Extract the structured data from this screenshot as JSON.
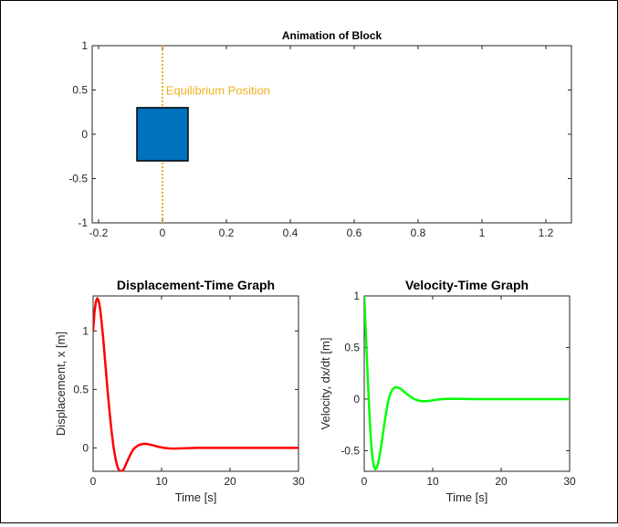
{
  "chart_data": [
    {
      "type": "animation-frame",
      "title": "Animation of Block",
      "xlim": [
        -0.22,
        1.28
      ],
      "ylim": [
        -1,
        1
      ],
      "x_ticks": [
        "-0.2",
        "0",
        "0.2",
        "0.4",
        "0.6",
        "0.8",
        "1",
        "1.2"
      ],
      "x_tick_values": [
        -0.2,
        0,
        0.2,
        0.4,
        0.6,
        0.8,
        1,
        1.2
      ],
      "y_ticks": [
        "1",
        "0.5",
        "0",
        "-0.5",
        "-1"
      ],
      "y_tick_values": [
        1,
        0.5,
        0,
        -0.5,
        -1
      ],
      "block": {
        "x_min": -0.08,
        "x_max": 0.08,
        "y_min": -0.3,
        "y_max": 0.3,
        "color": "#0072BD"
      },
      "equilibrium_line": {
        "x": 0,
        "color": "#EDB120"
      },
      "annotation": {
        "text": "Equilibrium Position",
        "x": 0.005,
        "y": 0.5,
        "color": "#EDB120"
      }
    },
    {
      "type": "line",
      "title": "Displacement-Time Graph",
      "xlabel": "Time [s]",
      "ylabel": "Displacement, x [m]",
      "xlim": [
        0,
        30
      ],
      "ylim": [
        -0.2,
        1.3
      ],
      "x_ticks": [
        "0",
        "10",
        "20",
        "30"
      ],
      "x_tick_values": [
        0,
        10,
        20,
        30
      ],
      "y_ticks": [
        "1",
        "0.5",
        "0"
      ],
      "y_tick_values": [
        1,
        0.5,
        0
      ],
      "grid": false,
      "series": [
        {
          "color": "#FF0000",
          "x": [
            0,
            0.2,
            0.4,
            0.6,
            0.8,
            1.0,
            1.2,
            1.5,
            1.8,
            2.1,
            2.4,
            2.7,
            3.0,
            3.3,
            3.6,
            3.9,
            4.2,
            4.5,
            4.8,
            5.1,
            5.5,
            5.9,
            6.3,
            6.7,
            7.1,
            7.5,
            8.0,
            8.5,
            9.0,
            9.5,
            10.0,
            10.5,
            11.0,
            11.5,
            12.0,
            12.5,
            13.0,
            14.0,
            15.0,
            16.0,
            18.0,
            20.0,
            22.0,
            24.0,
            26.0,
            28.0,
            30.0
          ],
          "y": [
            1.0,
            1.16,
            1.25,
            1.28,
            1.26,
            1.2,
            1.1,
            0.92,
            0.71,
            0.5,
            0.31,
            0.14,
            0.0,
            -0.1,
            -0.17,
            -0.2,
            -0.2,
            -0.18,
            -0.14,
            -0.1,
            -0.05,
            -0.01,
            0.01,
            0.025,
            0.032,
            0.035,
            0.032,
            0.026,
            0.018,
            0.01,
            0.004,
            -0.001,
            -0.004,
            -0.006,
            -0.006,
            -0.005,
            -0.004,
            -0.002,
            0.0,
            0.0005,
            0.0005,
            0.0,
            0.0,
            0.0,
            0.0,
            0.0,
            0.0
          ]
        }
      ]
    },
    {
      "type": "line",
      "title": "Velocity-Time Graph",
      "xlabel": "Time [s]",
      "ylabel": "Velocity, dx/dt [m]",
      "xlim": [
        0,
        30
      ],
      "ylim": [
        -0.7,
        1.0
      ],
      "x_ticks": [
        "0",
        "10",
        "20",
        "30"
      ],
      "x_tick_values": [
        0,
        10,
        20,
        30
      ],
      "y_ticks": [
        "1",
        "0.5",
        "0",
        "-0.5"
      ],
      "y_tick_values": [
        1,
        0.5,
        0,
        -0.5
      ],
      "grid": false,
      "series": [
        {
          "color": "#00FF00",
          "x": [
            0,
            0.2,
            0.4,
            0.6,
            0.8,
            1.0,
            1.2,
            1.4,
            1.6,
            1.8,
            2.0,
            2.3,
            2.6,
            2.9,
            3.2,
            3.5,
            3.8,
            4.1,
            4.4,
            4.7,
            5.0,
            5.3,
            5.6,
            5.9,
            6.2,
            6.6,
            7.0,
            7.4,
            7.8,
            8.2,
            8.6,
            9.0,
            9.5,
            10.0,
            10.5,
            11.0,
            11.5,
            12.0,
            12.5,
            13.0,
            14.0,
            15.0,
            16.0,
            18.0,
            20.0,
            22.0,
            25.0,
            30.0
          ],
          "y": [
            1.0,
            0.7,
            0.38,
            0.08,
            -0.2,
            -0.42,
            -0.57,
            -0.65,
            -0.68,
            -0.67,
            -0.63,
            -0.53,
            -0.4,
            -0.26,
            -0.13,
            -0.02,
            0.05,
            0.09,
            0.11,
            0.115,
            0.11,
            0.1,
            0.085,
            0.068,
            0.05,
            0.03,
            0.012,
            -0.002,
            -0.012,
            -0.018,
            -0.02,
            -0.02,
            -0.017,
            -0.012,
            -0.007,
            -0.003,
            0.0,
            0.002,
            0.003,
            0.003,
            0.002,
            0.001,
            0.0,
            0.0,
            0.0,
            0.0,
            0.0,
            0.0
          ]
        }
      ]
    }
  ]
}
